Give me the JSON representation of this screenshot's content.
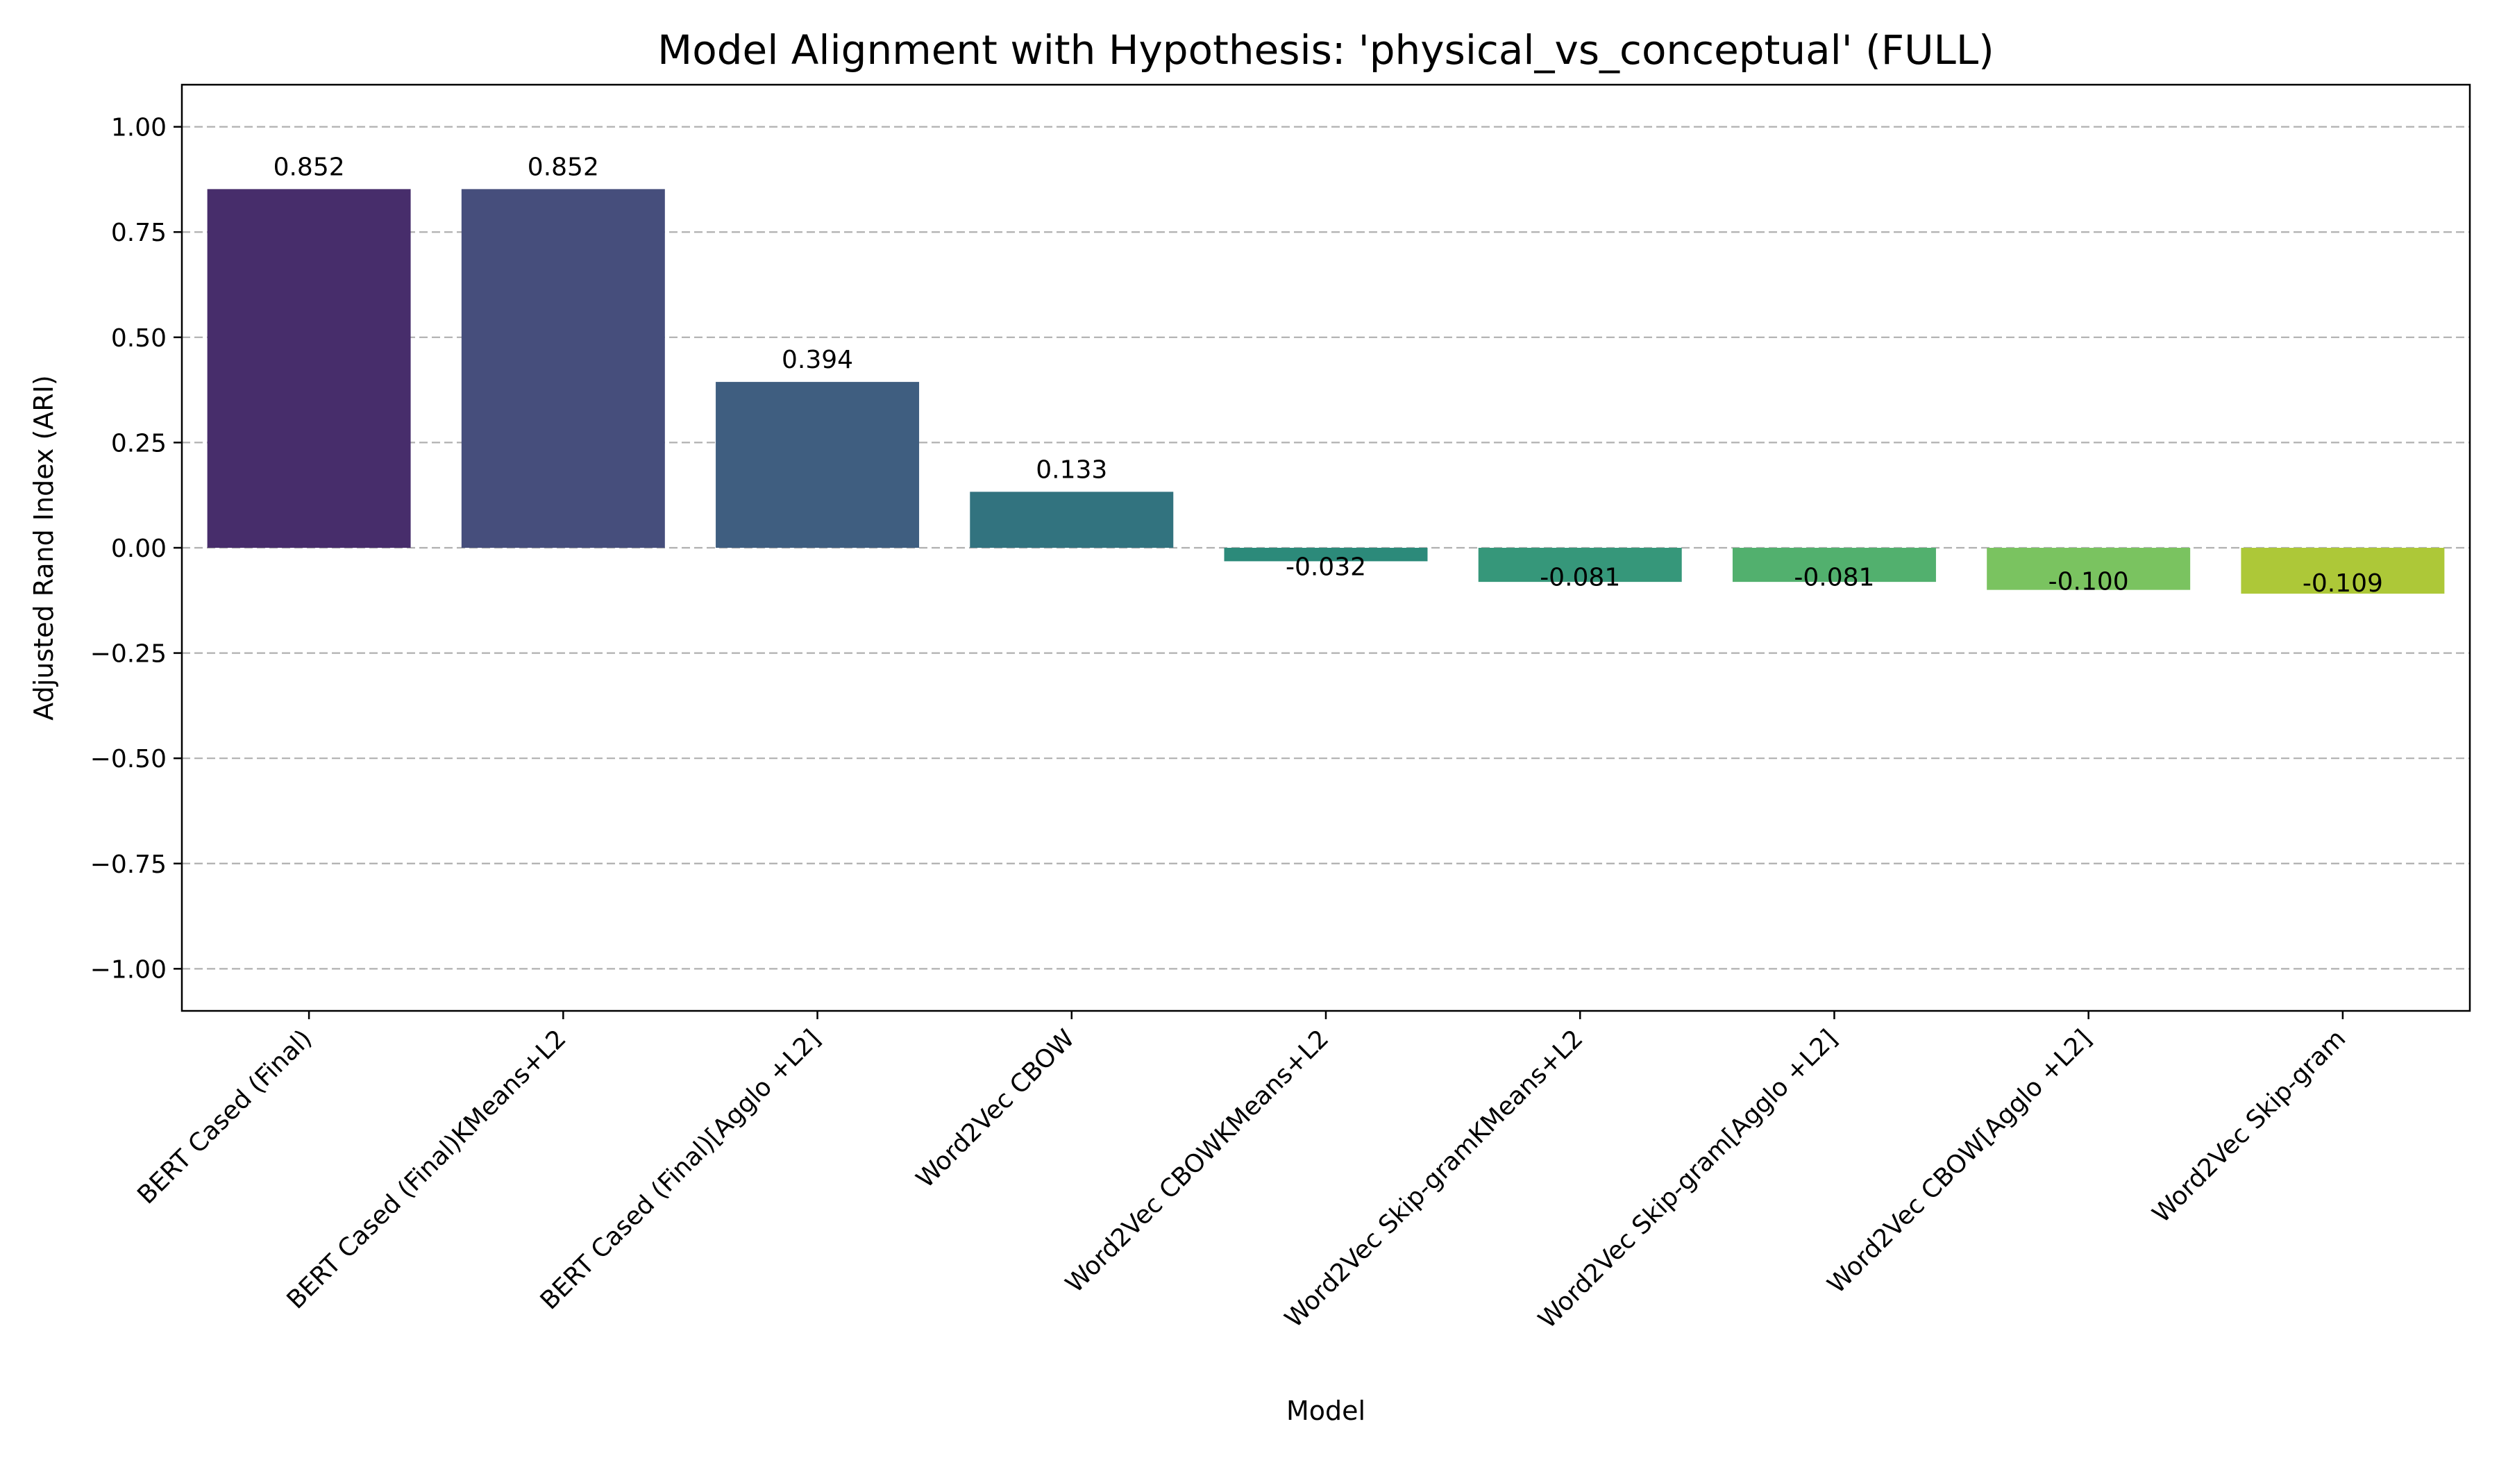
{
  "chart_data": {
    "type": "bar",
    "title": "Model Alignment with Hypothesis: 'physical_vs_conceptual' (FULL)",
    "xlabel": "Model",
    "ylabel": "Adjusted Rand Index (ARI)",
    "ylim": [
      -1.1,
      1.1
    ],
    "yticks": [
      1.0,
      0.75,
      0.5,
      0.25,
      0.0,
      -0.25,
      -0.5,
      -0.75,
      -1.0
    ],
    "ytick_labels": [
      "1.00",
      "0.75",
      "0.50",
      "0.25",
      "0.00",
      "−0.25",
      "−0.50",
      "−0.75",
      "−1.00"
    ],
    "grid": "y-dashed",
    "categories": [
      "BERT Cased (Final)",
      "BERT Cased (Final)KMeans+L2",
      "BERT Cased (Final)[Agglo +L2]",
      "Word2Vec CBOW",
      "Word2Vec CBOWKMeans+L2",
      "Word2Vec Skip-gramKMeans+L2",
      "Word2Vec Skip-gram[Agglo +L2]",
      "Word2Vec CBOW[Agglo +L2]",
      "Word2Vec Skip-gram"
    ],
    "values": [
      0.852,
      0.852,
      0.394,
      0.133,
      -0.032,
      -0.081,
      -0.081,
      -0.1,
      -0.109
    ],
    "value_labels": [
      "0.852",
      "0.852",
      "0.394",
      "0.133",
      "-0.032",
      "-0.081",
      "-0.081",
      "-0.100",
      "-0.109"
    ],
    "colors": [
      "#472d6b",
      "#464e7c",
      "#3f5e80",
      "#32737f",
      "#2c8a7a",
      "#36977a",
      "#52b06e",
      "#7ac360",
      "#adc838"
    ]
  }
}
